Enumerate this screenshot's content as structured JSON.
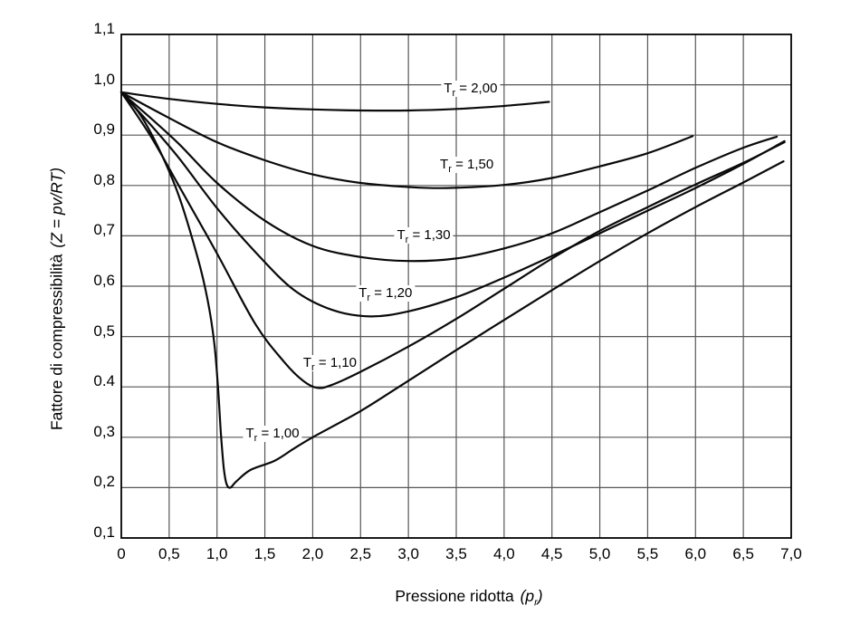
{
  "page": {
    "background": "#ffffff"
  },
  "chart_data": {
    "type": "line",
    "title": "",
    "xlabel": "Pressione ridotta (pr)",
    "ylabel": "Fattore di compressibilità (Z = pv/RT)",
    "x_axis": {
      "title": "Pressione ridotta",
      "symbol_open": "(p",
      "symbol_sub": "r",
      "symbol_close": ")"
    },
    "y_axis": {
      "title": "Fattore di compressibilità",
      "formula": "(Z = pv/RT)"
    },
    "xlim": [
      0,
      7
    ],
    "ylim": [
      0.1,
      1.1
    ],
    "grid": "on",
    "grid_color": "#565656",
    "axis_color": "#000000",
    "curve_color": "#0a0a0a",
    "x_tick_values": [
      0,
      0.5,
      1.0,
      1.5,
      2.0,
      2.5,
      3.0,
      3.5,
      4.0,
      4.5,
      5.0,
      5.5,
      6.0,
      6.5,
      7.0
    ],
    "x_ticks": [
      "0",
      "0,5",
      "1,0",
      "1,5",
      "2,0",
      "2,5",
      "3,0",
      "3,5",
      "4,0",
      "4,5",
      "5,0",
      "5,5",
      "6,0",
      "6,5",
      "7,0"
    ],
    "y_tick_values": [
      1.1,
      1.0,
      0.9,
      0.8,
      0.7,
      0.6,
      0.5,
      0.4,
      0.3,
      0.2,
      0.1
    ],
    "y_ticks": [
      "1,1",
      "1,0",
      "0,9",
      "0,8",
      "0,7",
      "0,6",
      "0,5",
      "0.4",
      "0,3",
      "0,2",
      "0,1"
    ],
    "label_prefix": "T",
    "label_sub": "r",
    "label_eq": " = ",
    "series": [
      {
        "name": "Tr = 1,00",
        "tr": "1,00",
        "points": [
          [
            0,
            0.985
          ],
          [
            0.2,
            0.94
          ],
          [
            0.4,
            0.87
          ],
          [
            0.6,
            0.78
          ],
          [
            0.8,
            0.655
          ],
          [
            0.9,
            0.575
          ],
          [
            0.97,
            0.49
          ],
          [
            1.01,
            0.4
          ],
          [
            1.04,
            0.31
          ],
          [
            1.07,
            0.24
          ],
          [
            1.1,
            0.207
          ],
          [
            1.14,
            0.2
          ],
          [
            1.2,
            0.212
          ],
          [
            1.35,
            0.235
          ],
          [
            1.6,
            0.253
          ],
          [
            1.8,
            0.277
          ],
          [
            2.0,
            0.3
          ],
          [
            2.5,
            0.352
          ],
          [
            2.9,
            0.4
          ],
          [
            3.5,
            0.473
          ],
          [
            4.0,
            0.533
          ],
          [
            4.5,
            0.592
          ],
          [
            5.0,
            0.65
          ],
          [
            5.5,
            0.705
          ],
          [
            6.0,
            0.757
          ],
          [
            6.5,
            0.806
          ],
          [
            6.92,
            0.848
          ]
        ]
      },
      {
        "name": "Tr = 1,10",
        "tr": "1,10",
        "points": [
          [
            0,
            0.985
          ],
          [
            0.3,
            0.9
          ],
          [
            0.6,
            0.8
          ],
          [
            1.0,
            0.665
          ],
          [
            1.4,
            0.525
          ],
          [
            1.7,
            0.45
          ],
          [
            1.9,
            0.412
          ],
          [
            2.05,
            0.398
          ],
          [
            2.2,
            0.404
          ],
          [
            2.5,
            0.43
          ],
          [
            3.0,
            0.48
          ],
          [
            3.5,
            0.535
          ],
          [
            4.0,
            0.595
          ],
          [
            4.5,
            0.655
          ],
          [
            5.0,
            0.71
          ],
          [
            5.5,
            0.757
          ],
          [
            6.0,
            0.802
          ],
          [
            6.5,
            0.845
          ],
          [
            6.93,
            0.886
          ]
        ]
      },
      {
        "name": "Tr = 1,20",
        "tr": "1,20",
        "points": [
          [
            0,
            0.985
          ],
          [
            0.3,
            0.922
          ],
          [
            0.6,
            0.855
          ],
          [
            1.0,
            0.755
          ],
          [
            1.4,
            0.668
          ],
          [
            1.8,
            0.593
          ],
          [
            2.2,
            0.553
          ],
          [
            2.6,
            0.54
          ],
          [
            3.0,
            0.55
          ],
          [
            3.5,
            0.578
          ],
          [
            4.0,
            0.617
          ],
          [
            4.5,
            0.66
          ],
          [
            5.0,
            0.705
          ],
          [
            5.5,
            0.75
          ],
          [
            6.0,
            0.795
          ],
          [
            6.5,
            0.843
          ],
          [
            6.93,
            0.888
          ]
        ]
      },
      {
        "name": "Tr = 1,30",
        "tr": "1,30",
        "points": [
          [
            0,
            0.985
          ],
          [
            0.3,
            0.935
          ],
          [
            0.6,
            0.883
          ],
          [
            1.0,
            0.805
          ],
          [
            1.5,
            0.73
          ],
          [
            2.0,
            0.68
          ],
          [
            2.5,
            0.658
          ],
          [
            3.0,
            0.65
          ],
          [
            3.5,
            0.655
          ],
          [
            4.0,
            0.675
          ],
          [
            4.5,
            0.705
          ],
          [
            5.0,
            0.747
          ],
          [
            5.5,
            0.79
          ],
          [
            6.0,
            0.835
          ],
          [
            6.5,
            0.875
          ],
          [
            6.85,
            0.897
          ]
        ]
      },
      {
        "name": "Tr = 1,50",
        "tr": "1,50",
        "points": [
          [
            0,
            0.985
          ],
          [
            0.5,
            0.934
          ],
          [
            1.0,
            0.886
          ],
          [
            1.5,
            0.85
          ],
          [
            2.0,
            0.822
          ],
          [
            2.5,
            0.805
          ],
          [
            3.0,
            0.797
          ],
          [
            3.4,
            0.795
          ],
          [
            4.0,
            0.801
          ],
          [
            4.5,
            0.815
          ],
          [
            5.0,
            0.838
          ],
          [
            5.5,
            0.864
          ],
          [
            5.97,
            0.898
          ]
        ]
      },
      {
        "name": "Tr = 2,00",
        "tr": "2,00",
        "points": [
          [
            0,
            0.985
          ],
          [
            0.5,
            0.972
          ],
          [
            1.0,
            0.962
          ],
          [
            1.5,
            0.955
          ],
          [
            2.0,
            0.951
          ],
          [
            2.5,
            0.949
          ],
          [
            3.0,
            0.949
          ],
          [
            3.5,
            0.952
          ],
          [
            4.0,
            0.958
          ],
          [
            4.47,
            0.966
          ]
        ]
      }
    ],
    "annotations": [
      {
        "tr": "1,00",
        "x": 1.58,
        "y": 0.307
      },
      {
        "tr": "1,10",
        "x": 2.18,
        "y": 0.447
      },
      {
        "tr": "1,20",
        "x": 2.76,
        "y": 0.586
      },
      {
        "tr": "1,30",
        "x": 3.16,
        "y": 0.701
      },
      {
        "tr": "1,50",
        "x": 3.61,
        "y": 0.841
      },
      {
        "tr": "2,00",
        "x": 3.65,
        "y": 0.992
      }
    ]
  }
}
